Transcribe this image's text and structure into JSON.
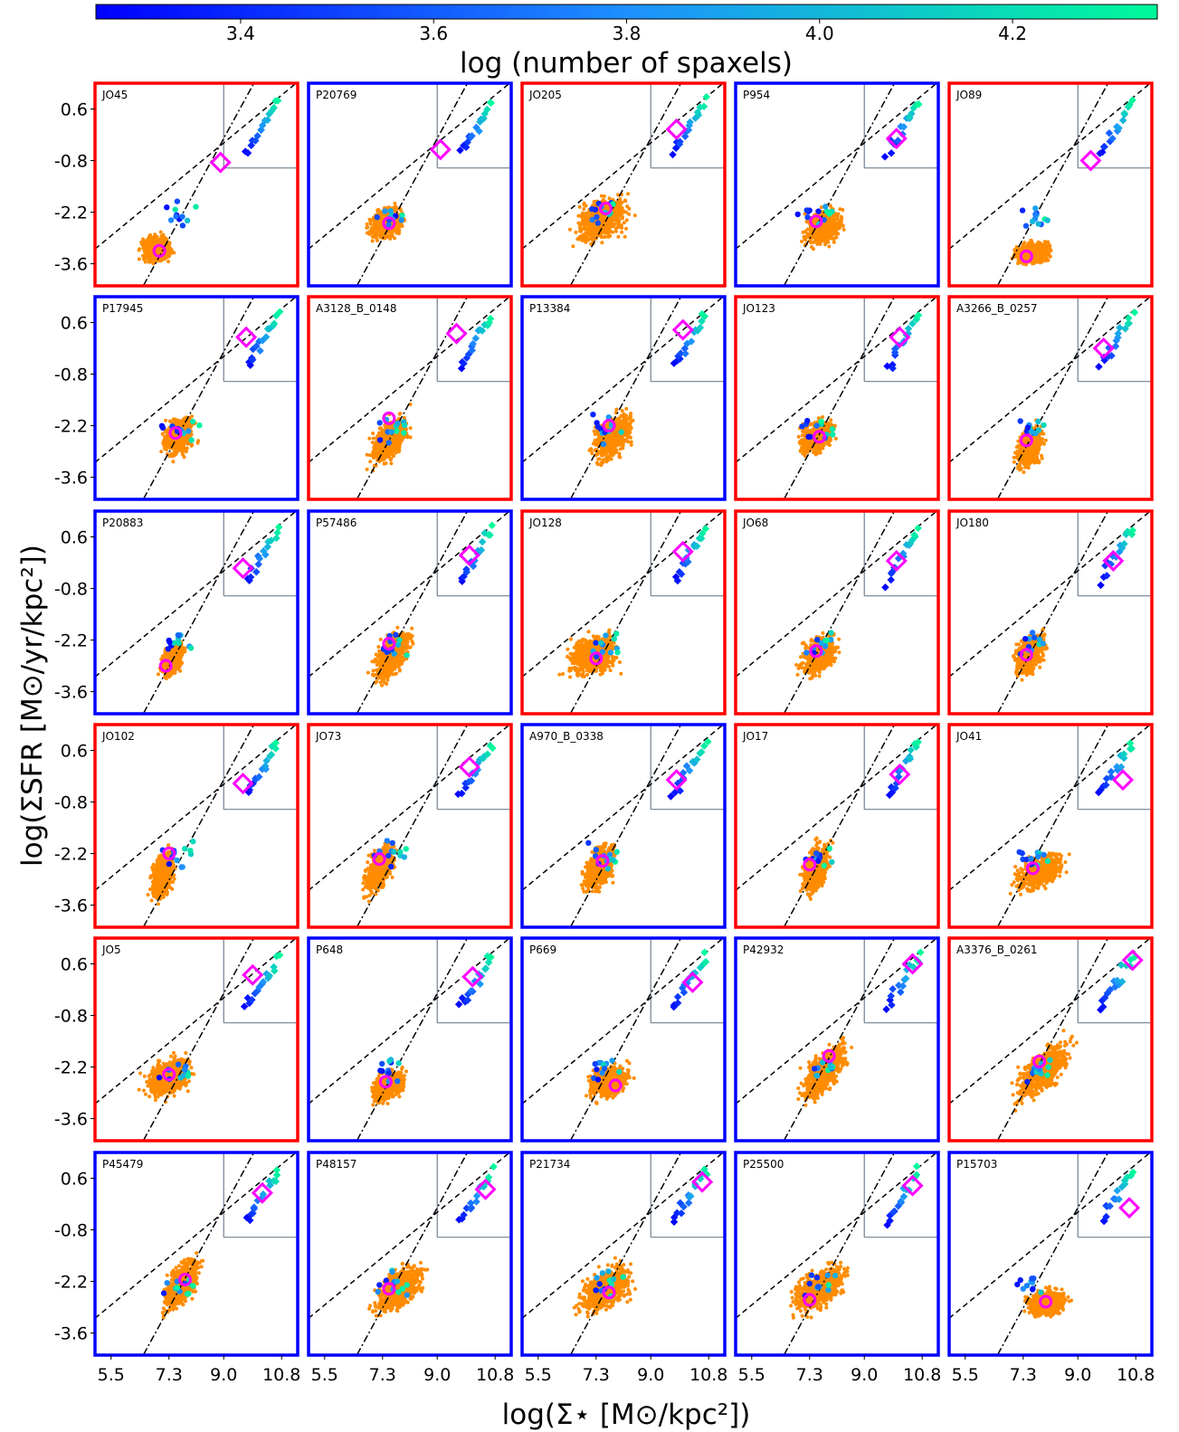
{
  "chart_data": {
    "type": "scatter",
    "layout": "6 rows x 5 columns small multiples",
    "xlabel": "log(Σ⋆ [M⊙/kpc²])",
    "ylabel": "log(ΣSFR [M⊙/yr/kpc²])",
    "xlim": [
      5.0,
      11.3
    ],
    "ylim": [
      -4.2,
      1.3
    ],
    "xticks": [
      "5.5",
      "7.3",
      "9.0",
      "10.8"
    ],
    "yticks": [
      "0.6",
      "-0.8",
      "-2.2",
      "-3.6"
    ],
    "colorbar": {
      "label": "log (number of spaxels)",
      "ticks": [
        "3.4",
        "3.6",
        "3.8",
        "4.0",
        "4.2"
      ],
      "range": [
        3.25,
        4.35
      ],
      "colors": [
        "#0000ff",
        "#1e90ff",
        "#00fa9a"
      ]
    },
    "frame_colors": {
      "red": "#ff0000",
      "blue": "#0000ff"
    },
    "spaxel_color": "#ff8c00",
    "marker_color": "#ff00ff",
    "reference_lines": {
      "dashed": {
        "slope": 0.72,
        "intercept": -6.8
      },
      "dashdot": {
        "slope": 1.6,
        "intercept": -14.6
      },
      "vline_x": 9.0,
      "hline_y": -1.0
    },
    "panels": [
      {
        "name": "JO45",
        "frame": "red",
        "cloud": [
          6.9,
          -3.2,
          0.7,
          0.5,
          0.1
        ],
        "marker": {
          "shape": "circle",
          "x": 7.0,
          "y": -3.25
        },
        "marker2": {
          "shape": "diamond",
          "x": 8.9,
          "y": -0.85
        }
      },
      {
        "name": "P20769",
        "frame": "blue",
        "cloud": [
          7.4,
          -2.5,
          0.7,
          0.6,
          0.2
        ],
        "marker": {
          "shape": "circle",
          "x": 7.5,
          "y": -2.5
        },
        "marker2": {
          "shape": "diamond",
          "x": 9.1,
          "y": -0.5
        }
      },
      {
        "name": "JO205",
        "frame": "red",
        "cloud": [
          7.5,
          -2.4,
          1.2,
          0.8,
          0.3
        ],
        "marker": {
          "shape": "circle",
          "x": 7.6,
          "y": -2.1
        },
        "marker2": {
          "shape": "diamond",
          "x": 9.8,
          "y": 0.05
        }
      },
      {
        "name": "P954",
        "frame": "blue",
        "cloud": [
          7.7,
          -2.6,
          0.8,
          0.7,
          0.2
        ],
        "marker": {
          "shape": "circle",
          "x": 7.5,
          "y": -2.45
        },
        "marker2": {
          "shape": "diamond",
          "x": 10.0,
          "y": -0.2
        }
      },
      {
        "name": "JO89",
        "frame": "red",
        "cloud": [
          7.6,
          -3.3,
          0.8,
          0.4,
          0.1
        ],
        "marker": {
          "shape": "circle",
          "x": 7.4,
          "y": -3.4
        },
        "marker2": {
          "shape": "diamond",
          "x": 9.4,
          "y": -0.8
        }
      },
      {
        "name": "P17945",
        "frame": "blue",
        "cloud": [
          7.6,
          -2.5,
          0.7,
          0.7,
          0.2
        ],
        "marker": {
          "shape": "circle",
          "x": 7.5,
          "y": -2.4
        },
        "marker2": {
          "shape": "diamond",
          "x": 9.7,
          "y": 0.2
        }
      },
      {
        "name": "A3128_B_0148",
        "frame": "red",
        "cloud": [
          7.5,
          -2.6,
          0.8,
          0.8,
          0.6
        ],
        "marker": {
          "shape": "circle",
          "x": 7.5,
          "y": -2.0
        },
        "marker2": {
          "shape": "diamond",
          "x": 9.6,
          "y": 0.3
        }
      },
      {
        "name": "P13384",
        "frame": "blue",
        "cloud": [
          7.8,
          -2.5,
          0.9,
          0.8,
          0.4
        ],
        "marker": {
          "shape": "circle",
          "x": 7.7,
          "y": -2.2
        },
        "marker2": {
          "shape": "diamond",
          "x": 10.0,
          "y": 0.4
        }
      },
      {
        "name": "JO123",
        "frame": "red",
        "cloud": [
          7.5,
          -2.5,
          0.8,
          0.6,
          0.3
        ],
        "marker": {
          "shape": "circle",
          "x": 7.6,
          "y": -2.5
        },
        "marker2": {
          "shape": "diamond",
          "x": 10.1,
          "y": 0.2
        }
      },
      {
        "name": "A3266_B_0257",
        "frame": "red",
        "cloud": [
          7.5,
          -2.8,
          0.6,
          0.8,
          0.7
        ],
        "marker": {
          "shape": "circle",
          "x": 7.4,
          "y": -2.6
        },
        "marker2": {
          "shape": "diamond",
          "x": 9.8,
          "y": -0.1
        }
      },
      {
        "name": "P20883",
        "frame": "blue",
        "cloud": [
          7.4,
          -2.7,
          0.5,
          0.6,
          0.5
        ],
        "marker": {
          "shape": "circle",
          "x": 7.2,
          "y": -2.9
        },
        "marker2": {
          "shape": "diamond",
          "x": 9.6,
          "y": -0.25
        }
      },
      {
        "name": "P57486",
        "frame": "blue",
        "cloud": [
          7.6,
          -2.6,
          0.8,
          0.8,
          0.6
        ],
        "marker": {
          "shape": "circle",
          "x": 7.5,
          "y": -2.3
        },
        "marker2": {
          "shape": "diamond",
          "x": 10.0,
          "y": 0.1
        }
      },
      {
        "name": "JO128",
        "frame": "red",
        "cloud": [
          7.2,
          -2.6,
          1.1,
          0.8,
          0.2
        ],
        "marker": {
          "shape": "circle",
          "x": 7.3,
          "y": -2.7
        },
        "marker2": {
          "shape": "diamond",
          "x": 10.0,
          "y": 0.2
        }
      },
      {
        "name": "JO68",
        "frame": "red",
        "cloud": [
          7.6,
          -2.6,
          0.8,
          0.7,
          0.4
        ],
        "marker": {
          "shape": "circle",
          "x": 7.5,
          "y": -2.5
        },
        "marker2": {
          "shape": "diamond",
          "x": 10.0,
          "y": -0.05
        }
      },
      {
        "name": "JO180",
        "frame": "red",
        "cloud": [
          7.5,
          -2.6,
          0.7,
          0.7,
          0.5
        ],
        "marker": {
          "shape": "circle",
          "x": 7.4,
          "y": -2.6
        },
        "marker2": {
          "shape": "diamond",
          "x": 10.1,
          "y": -0.05
        }
      },
      {
        "name": "JO102",
        "frame": "red",
        "cloud": [
          7.1,
          -2.8,
          0.5,
          0.9,
          0.8
        ],
        "marker": {
          "shape": "circle",
          "x": 7.3,
          "y": -2.2
        },
        "marker2": {
          "shape": "diamond",
          "x": 9.6,
          "y": -0.3
        }
      },
      {
        "name": "JO73",
        "frame": "red",
        "cloud": [
          7.2,
          -2.6,
          0.7,
          0.8,
          0.8
        ],
        "marker": {
          "shape": "circle",
          "x": 7.2,
          "y": -2.35
        },
        "marker2": {
          "shape": "diamond",
          "x": 10.0,
          "y": 0.15
        }
      },
      {
        "name": "A970_B_0338",
        "frame": "blue",
        "cloud": [
          7.4,
          -2.6,
          0.7,
          0.8,
          0.6
        ],
        "marker": {
          "shape": "circle",
          "x": 7.5,
          "y": -2.4
        },
        "marker2": {
          "shape": "diamond",
          "x": 9.8,
          "y": -0.2
        }
      },
      {
        "name": "JO17",
        "frame": "red",
        "cloud": [
          7.5,
          -2.6,
          0.6,
          0.9,
          0.8
        ],
        "marker": {
          "shape": "circle",
          "x": 7.3,
          "y": -2.5
        },
        "marker2": {
          "shape": "diamond",
          "x": 10.1,
          "y": -0.05
        }
      },
      {
        "name": "JO41",
        "frame": "red",
        "cloud": [
          7.8,
          -2.7,
          1.1,
          0.6,
          0.3
        ],
        "marker": {
          "shape": "circle",
          "x": 7.6,
          "y": -2.6
        },
        "marker2": {
          "shape": "diamond",
          "x": 10.4,
          "y": -0.2
        }
      },
      {
        "name": "JO5",
        "frame": "red",
        "cloud": [
          7.3,
          -2.5,
          1.0,
          0.7,
          0.3
        ],
        "marker": {
          "shape": "circle",
          "x": 7.3,
          "y": -2.4
        },
        "marker2": {
          "shape": "diamond",
          "x": 9.9,
          "y": 0.3
        }
      },
      {
        "name": "P648",
        "frame": "blue",
        "cloud": [
          7.5,
          -2.7,
          0.7,
          0.6,
          0.3
        ],
        "marker": {
          "shape": "circle",
          "x": 7.4,
          "y": -2.6
        },
        "marker2": {
          "shape": "diamond",
          "x": 10.1,
          "y": 0.25
        }
      },
      {
        "name": "P669",
        "frame": "blue",
        "cloud": [
          7.7,
          -2.6,
          0.9,
          0.6,
          0.2
        ],
        "marker": {
          "shape": "circle",
          "x": 7.9,
          "y": -2.7
        },
        "marker2": {
          "shape": "diamond",
          "x": 10.3,
          "y": 0.1
        }
      },
      {
        "name": "P42932",
        "frame": "blue",
        "cloud": [
          7.8,
          -2.3,
          1.0,
          0.8,
          0.7
        ],
        "marker": {
          "shape": "circle",
          "x": 7.9,
          "y": -1.9
        },
        "marker2": {
          "shape": "diamond",
          "x": 10.5,
          "y": 0.6
        }
      },
      {
        "name": "A3376_B_0261",
        "frame": "red",
        "cloud": [
          7.9,
          -2.3,
          1.2,
          0.8,
          0.6
        ],
        "marker": {
          "shape": "circle",
          "x": 7.8,
          "y": -2.05
        },
        "marker2": {
          "shape": "diamond",
          "x": 10.7,
          "y": 0.7
        }
      },
      {
        "name": "P45479",
        "frame": "blue",
        "cloud": [
          7.7,
          -2.3,
          0.8,
          0.8,
          0.8
        ],
        "marker": {
          "shape": "circle",
          "x": 7.8,
          "y": -2.15
        },
        "marker2": {
          "shape": "diamond",
          "x": 10.2,
          "y": 0.2
        }
      },
      {
        "name": "P48157",
        "frame": "blue",
        "cloud": [
          7.8,
          -2.4,
          1.1,
          0.8,
          0.5
        ],
        "marker": {
          "shape": "circle",
          "x": 7.5,
          "y": -2.4
        },
        "marker2": {
          "shape": "diamond",
          "x": 10.5,
          "y": 0.3
        }
      },
      {
        "name": "P21734",
        "frame": "blue",
        "cloud": [
          7.6,
          -2.4,
          1.2,
          0.8,
          0.4
        ],
        "marker": {
          "shape": "circle",
          "x": 7.7,
          "y": -2.5
        },
        "marker2": {
          "shape": "diamond",
          "x": 10.6,
          "y": 0.5
        }
      },
      {
        "name": "P25500",
        "frame": "blue",
        "cloud": [
          7.6,
          -2.4,
          1.2,
          0.8,
          0.4
        ],
        "marker": {
          "shape": "circle",
          "x": 7.3,
          "y": -2.7
        },
        "marker2": {
          "shape": "diamond",
          "x": 10.5,
          "y": 0.4
        }
      },
      {
        "name": "P15703",
        "frame": "blue",
        "cloud": [
          8.0,
          -2.8,
          0.9,
          0.5,
          0.1
        ],
        "marker": {
          "shape": "circle",
          "x": 8.0,
          "y": -2.75
        },
        "marker2": {
          "shape": "diamond",
          "x": 10.6,
          "y": -0.2
        }
      }
    ]
  }
}
